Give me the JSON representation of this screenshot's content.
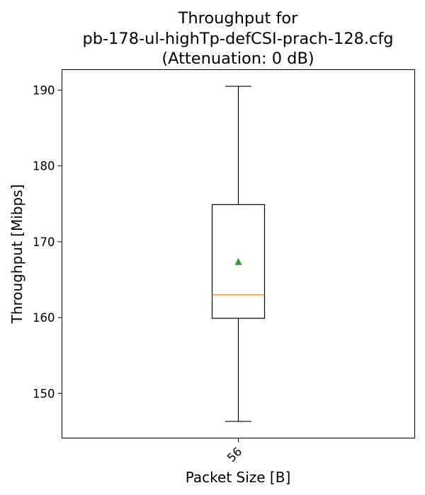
{
  "chart_data": {
    "type": "box",
    "title_lines": [
      "Throughput for",
      "pb-178-ul-highTp-defCSI-prach-128.cfg",
      "(Attenuation: 0 dB)"
    ],
    "xlabel": "Packet Size [B]",
    "ylabel": "Throughput [Mibps]",
    "ylim": [
      144.1,
      192.7
    ],
    "yticks": [
      150,
      160,
      170,
      180,
      190
    ],
    "categories": [
      "56"
    ],
    "boxes": [
      {
        "category": "56",
        "whisker_low": 146.3,
        "q1": 159.9,
        "median": 163.0,
        "mean": 167.4,
        "q3": 174.9,
        "whisker_high": 190.5
      }
    ],
    "colors": {
      "box": "#000000",
      "median": "#ff7f0e",
      "mean": "#2ca02c"
    },
    "grid": false
  }
}
